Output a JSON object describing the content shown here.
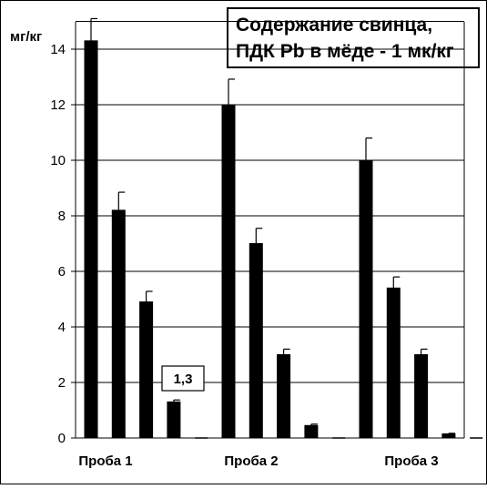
{
  "chart_data": {
    "type": "bar",
    "title_line1": "Содержание свинца,",
    "title_line2": "ПДК Pb в мёде - 1 мк/кг",
    "ylabel": "мг/кг",
    "ylim": [
      0,
      15
    ],
    "yticks": [
      0,
      2,
      4,
      6,
      8,
      10,
      12,
      14
    ],
    "grid": true,
    "groups": [
      {
        "label": "Проба 1",
        "values": [
          14.3,
          8.2,
          4.9,
          1.3
        ],
        "errors": [
          0.8,
          0.65,
          0.38,
          0.07
        ]
      },
      {
        "label": "Проба 2",
        "values": [
          12.0,
          7.0,
          3.0,
          0.45
        ],
        "errors": [
          0.92,
          0.55,
          0.2,
          0.05
        ]
      },
      {
        "label": "Проба 3",
        "values": [
          10.0,
          5.4,
          3.0,
          0.15
        ],
        "errors": [
          0.8,
          0.4,
          0.2,
          0.02
        ]
      }
    ],
    "annotation": {
      "text": "1,3",
      "group": 0,
      "bar": 3
    },
    "colors": {
      "bar": "#000000",
      "grid": "#000000",
      "background": "#ffffff"
    }
  }
}
